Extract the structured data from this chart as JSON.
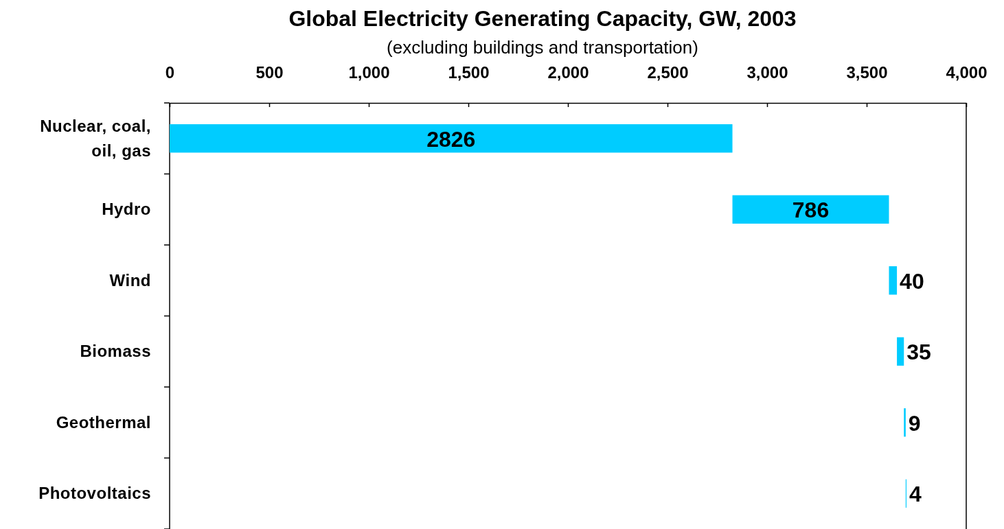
{
  "chart_data": {
    "type": "bar",
    "orientation": "horizontal",
    "title": "Global Electricity Generating Capacity, GW, 2003",
    "subtitle": "(excluding buildings and transportation)",
    "categories": [
      "Nuclear, coal, oil, gas",
      "Hydro",
      "Wind",
      "Biomass",
      "Geothermal",
      "Photovoltaics"
    ],
    "values": [
      2826,
      786,
      40,
      35,
      9,
      4
    ],
    "base": [
      0,
      2826,
      3612,
      3652,
      3687,
      3696
    ],
    "color": "#00ccff",
    "data_labels": true,
    "grid": false,
    "xlim": [
      0,
      4000
    ],
    "xticks": [
      0,
      500,
      {
        "value": 1000,
        "label": "1,000"
      },
      {
        "value": 1500,
        "label": "1,500"
      },
      {
        "value": 2000,
        "label": "2,000"
      },
      {
        "value": 2500,
        "label": "2,500"
      },
      {
        "value": 3000,
        "label": "3,000"
      },
      {
        "value": 3500,
        "label": "3,500"
      },
      {
        "value": 4000,
        "label": "4,000"
      }
    ]
  }
}
